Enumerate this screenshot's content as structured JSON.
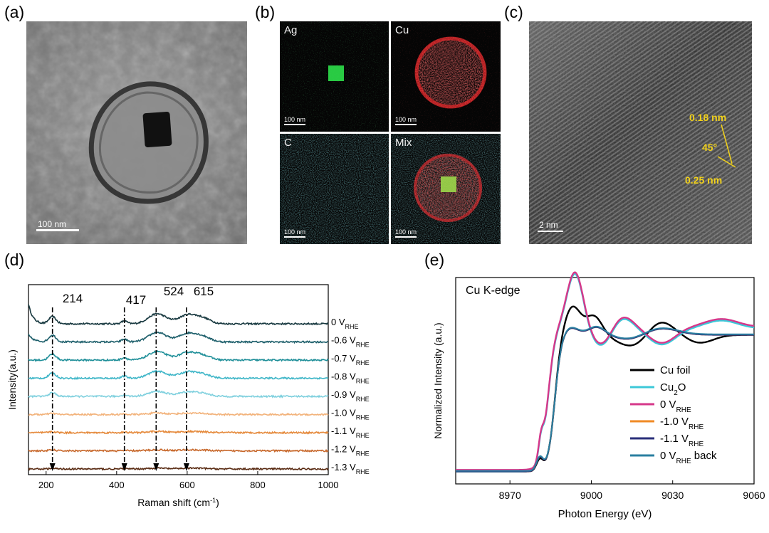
{
  "panels": {
    "a": {
      "label": "(a)",
      "scalebar": "100 nm"
    },
    "b": {
      "label": "(b)",
      "tiles": [
        {
          "name": "Ag",
          "scalebar": "100 nm",
          "color": "#22dd44"
        },
        {
          "name": "Cu",
          "scalebar": "100 nm",
          "color": "#e8262a"
        },
        {
          "name": "C",
          "scalebar": "100 nm",
          "color": "#3ec9cf"
        },
        {
          "name": "Mix",
          "scalebar": "100 nm",
          "color": "#e8262a"
        }
      ]
    },
    "c": {
      "label": "(c)",
      "scalebar": "2 nm",
      "annotations": [
        "0.18 nm",
        "45°",
        "0.25 nm"
      ]
    },
    "d": {
      "label": "(d)"
    },
    "e": {
      "label": "(e)"
    }
  },
  "chart_data": [
    {
      "type": "line",
      "panel": "(d)",
      "xlabel": "Raman shift (cm",
      "xlabel_sup": "-1",
      "xlabel_end": ")",
      "ylabel": "Intensity(a.u.)",
      "xlim": [
        150,
        1000
      ],
      "xticks": [
        200,
        400,
        600,
        800,
        1000
      ],
      "peaks": [
        {
          "label": "214",
          "x": 218
        },
        {
          "label": "417",
          "x": 422
        },
        {
          "label": "524",
          "x": 512
        },
        {
          "label": "615",
          "x": 598
        }
      ],
      "series": [
        {
          "name": "0 V",
          "sub": "RHE",
          "color": "#17383f",
          "offset": 9.0,
          "amp": 1.0
        },
        {
          "name": "-0.6 V",
          "sub": "RHE",
          "color": "#1c5e6a",
          "offset": 8.0,
          "amp": 0.95
        },
        {
          "name": "-0.7 V",
          "sub": "RHE",
          "color": "#1f8f99",
          "offset": 7.0,
          "amp": 0.85
        },
        {
          "name": "-0.8 V",
          "sub": "RHE",
          "color": "#3fb6c8",
          "offset": 6.0,
          "amp": 0.7
        },
        {
          "name": "-0.9 V",
          "sub": "RHE",
          "color": "#7fd0de",
          "offset": 5.0,
          "amp": 0.5
        },
        {
          "name": "-1.0 V",
          "sub": "RHE",
          "color": "#f2b27a",
          "offset": 4.0,
          "amp": 0.15
        },
        {
          "name": "-1.1 V",
          "sub": "RHE",
          "color": "#e58a3c",
          "offset": 3.0,
          "amp": 0.12
        },
        {
          "name": "-1.2 V",
          "sub": "RHE",
          "color": "#c7672a",
          "offset": 2.0,
          "amp": 0.1
        },
        {
          "name": "-1.3 V",
          "sub": "RHE",
          "color": "#5a2c14",
          "offset": 1.0,
          "amp": 0.08
        }
      ]
    },
    {
      "type": "line",
      "panel": "(e)",
      "title": "Cu K-edge",
      "xlabel": "Photon Energy (eV)",
      "ylabel": "Normalized Intensity (a.u.)",
      "xlim": [
        8950,
        9060
      ],
      "xticks": [
        8970,
        9000,
        9030,
        9060
      ],
      "legend_position": "bottom-right",
      "series": [
        {
          "name": "Cu foil",
          "sub": "",
          "suffix": "",
          "color": "#000000"
        },
        {
          "name": "Cu",
          "sub": "2",
          "suffix": "O",
          "color": "#3cc8d8"
        },
        {
          "name": "0 V",
          "sub": "RHE",
          "suffix": "",
          "color": "#d6378a"
        },
        {
          "name": "-1.0 V",
          "sub": "RHE",
          "suffix": "",
          "color": "#f08a24"
        },
        {
          "name": "-1.1 V",
          "sub": "RHE",
          "suffix": "",
          "color": "#2a2f7a"
        },
        {
          "name": "0 V",
          "sub": "RHE",
          "suffix": " back",
          "color": "#2a7fa0"
        }
      ]
    }
  ]
}
